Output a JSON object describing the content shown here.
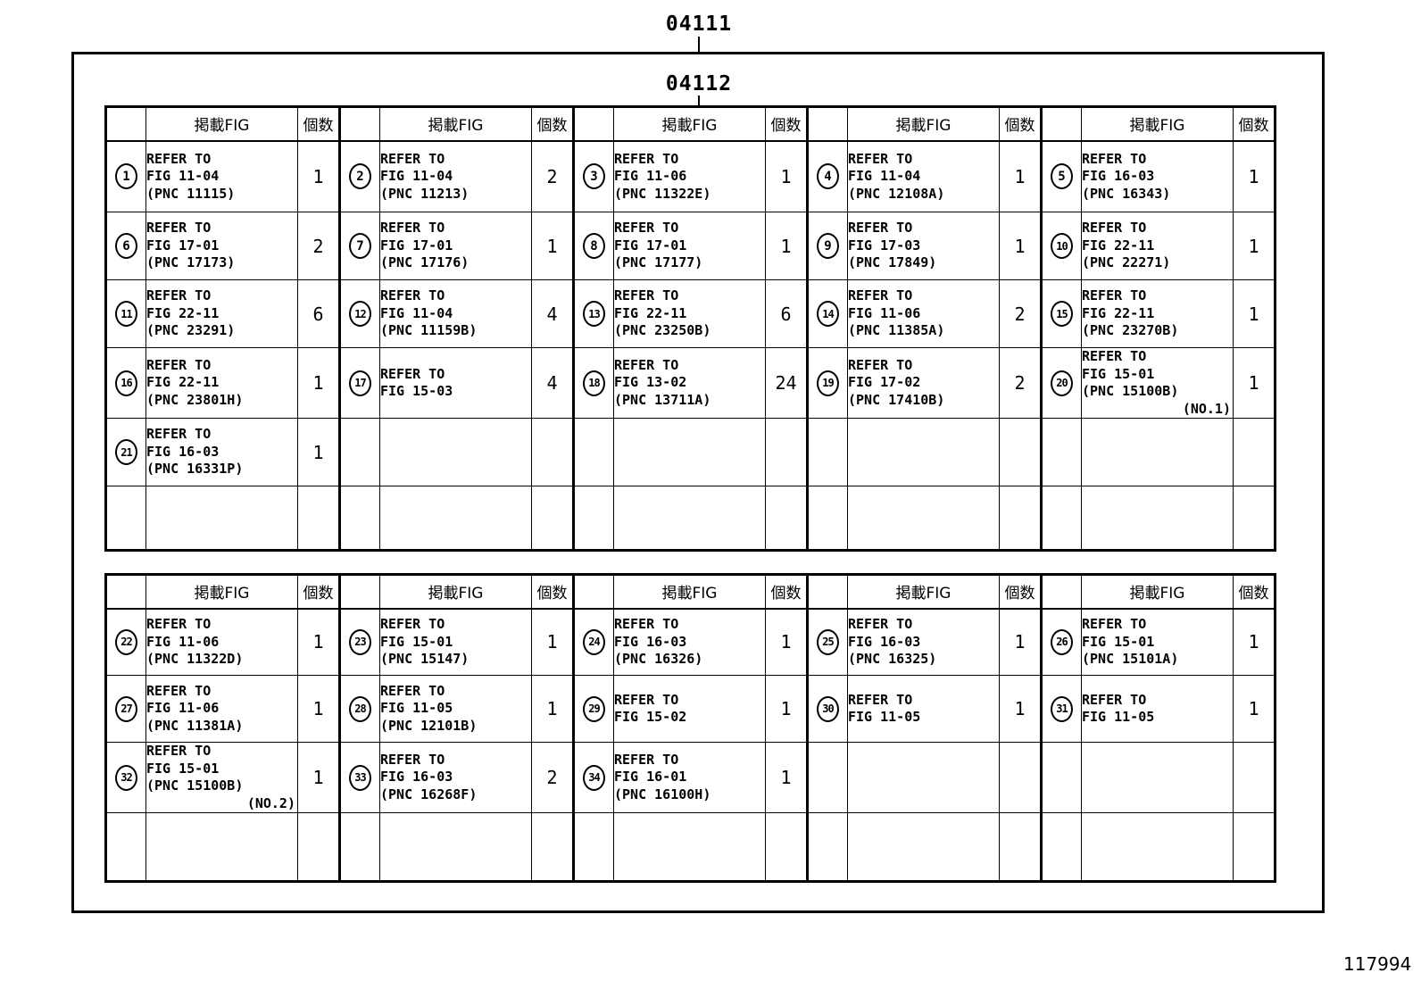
{
  "labels": {
    "outer_code": "04111",
    "inner_code": "04112",
    "doc_number": "117994"
  },
  "header": {
    "fig_col": "掲載FIG",
    "qty_col": "個数"
  },
  "tables": [
    {
      "name": "upper",
      "rows": [
        [
          {
            "n": "1",
            "lines": [
              "REFER TO",
              "FIG 11-04",
              "(PNC 11115)"
            ],
            "qty": "1"
          },
          {
            "n": "2",
            "lines": [
              "REFER TO",
              "FIG 11-04",
              "(PNC 11213)"
            ],
            "qty": "2"
          },
          {
            "n": "3",
            "lines": [
              "REFER TO",
              "FIG 11-06",
              "(PNC 11322E)"
            ],
            "qty": "1"
          },
          {
            "n": "4",
            "lines": [
              "REFER TO",
              "FIG 11-04",
              "(PNC 12108A)"
            ],
            "qty": "1"
          },
          {
            "n": "5",
            "lines": [
              "REFER TO",
              "FIG 16-03",
              "(PNC 16343)"
            ],
            "qty": "1"
          }
        ],
        [
          {
            "n": "6",
            "lines": [
              "REFER TO",
              "FIG 17-01",
              "(PNC 17173)"
            ],
            "qty": "2"
          },
          {
            "n": "7",
            "lines": [
              "REFER TO",
              "FIG 17-01",
              "(PNC 17176)"
            ],
            "qty": "1"
          },
          {
            "n": "8",
            "lines": [
              "REFER TO",
              "FIG 17-01",
              "(PNC 17177)"
            ],
            "qty": "1"
          },
          {
            "n": "9",
            "lines": [
              "REFER TO",
              "FIG 17-03",
              "(PNC 17849)"
            ],
            "qty": "1"
          },
          {
            "n": "10",
            "lines": [
              "REFER TO",
              "FIG 22-11",
              "(PNC 22271)"
            ],
            "qty": "1"
          }
        ],
        [
          {
            "n": "11",
            "lines": [
              "REFER TO",
              "FIG 22-11",
              "(PNC 23291)"
            ],
            "qty": "6"
          },
          {
            "n": "12",
            "lines": [
              "REFER TO",
              "FIG 11-04",
              "(PNC 11159B)"
            ],
            "qty": "4"
          },
          {
            "n": "13",
            "lines": [
              "REFER TO",
              "FIG 22-11",
              "(PNC 23250B)"
            ],
            "qty": "6"
          },
          {
            "n": "14",
            "lines": [
              "REFER TO",
              "FIG 11-06",
              "(PNC 11385A)"
            ],
            "qty": "2"
          },
          {
            "n": "15",
            "lines": [
              "REFER TO",
              "FIG 22-11",
              "(PNC 23270B)"
            ],
            "qty": "1"
          }
        ],
        [
          {
            "n": "16",
            "lines": [
              "REFER TO",
              "FIG 22-11",
              "(PNC 23801H)"
            ],
            "qty": "1"
          },
          {
            "n": "17",
            "lines": [
              "REFER TO",
              "FIG 15-03"
            ],
            "qty": "4"
          },
          {
            "n": "18",
            "lines": [
              "REFER TO",
              "FIG 13-02",
              "(PNC 13711A)"
            ],
            "qty": "24"
          },
          {
            "n": "19",
            "lines": [
              "REFER TO",
              "FIG 17-02",
              "(PNC 17410B)"
            ],
            "qty": "2"
          },
          {
            "n": "20",
            "lines": [
              "REFER TO",
              "FIG 15-01",
              "(PNC 15100B)",
              "(NO.1)"
            ],
            "qty": "1"
          }
        ],
        [
          {
            "n": "21",
            "lines": [
              "REFER TO",
              "FIG 16-03",
              "(PNC 16331P)"
            ],
            "qty": "1"
          },
          null,
          null,
          null,
          null
        ],
        [
          null,
          null,
          null,
          null,
          null
        ]
      ]
    },
    {
      "name": "lower",
      "rows": [
        [
          {
            "n": "22",
            "lines": [
              "REFER TO",
              "FIG 11-06",
              "(PNC 11322D)"
            ],
            "qty": "1"
          },
          {
            "n": "23",
            "lines": [
              "REFER TO",
              "FIG 15-01",
              "(PNC 15147)"
            ],
            "qty": "1"
          },
          {
            "n": "24",
            "lines": [
              "REFER TO",
              "FIG 16-03",
              "(PNC 16326)"
            ],
            "qty": "1"
          },
          {
            "n": "25",
            "lines": [
              "REFER TO",
              "FIG 16-03",
              "(PNC 16325)"
            ],
            "qty": "1"
          },
          {
            "n": "26",
            "lines": [
              "REFER TO",
              "FIG 15-01",
              "(PNC 15101A)"
            ],
            "qty": "1"
          }
        ],
        [
          {
            "n": "27",
            "lines": [
              "REFER TO",
              "FIG 11-06",
              "(PNC 11381A)"
            ],
            "qty": "1"
          },
          {
            "n": "28",
            "lines": [
              "REFER TO",
              "FIG 11-05",
              "(PNC 12101B)"
            ],
            "qty": "1"
          },
          {
            "n": "29",
            "lines": [
              "REFER TO",
              "FIG 15-02"
            ],
            "qty": "1"
          },
          {
            "n": "30",
            "lines": [
              "REFER TO",
              "FIG 11-05"
            ],
            "qty": "1"
          },
          {
            "n": "31",
            "lines": [
              "REFER TO",
              "FIG 11-05"
            ],
            "qty": "1"
          }
        ],
        [
          {
            "n": "32",
            "lines": [
              "REFER TO",
              "FIG 15-01",
              "(PNC 15100B)",
              "(NO.2)"
            ],
            "qty": "1"
          },
          {
            "n": "33",
            "lines": [
              "REFER TO",
              "FIG 16-03",
              "(PNC 16268F)"
            ],
            "qty": "2"
          },
          {
            "n": "34",
            "lines": [
              "REFER TO",
              "FIG 16-01",
              "(PNC 16100H)"
            ],
            "qty": "1"
          },
          null,
          null
        ],
        [
          null,
          null,
          null,
          null,
          null
        ]
      ]
    }
  ]
}
